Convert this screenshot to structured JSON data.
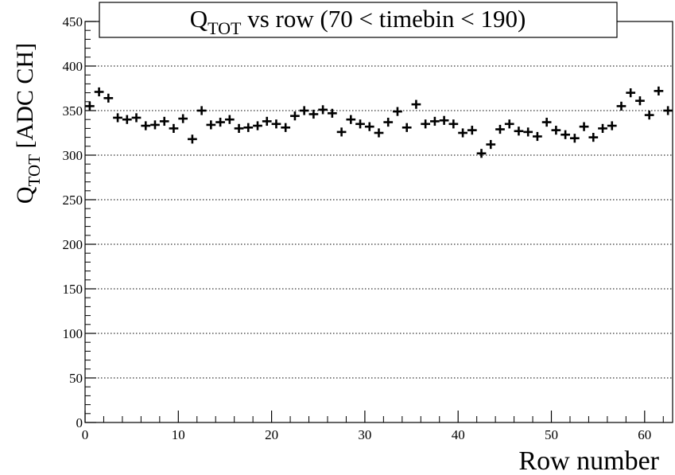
{
  "chart_data": {
    "type": "scatter",
    "title": {
      "main": "Q",
      "sub": "TOT",
      "rest": " vs row (70 < timebin < 190)"
    },
    "xlabel": "Row number",
    "ylabel": {
      "main": "Q",
      "sub": "TOT",
      "rest": " [ADC CH]"
    },
    "xlim": [
      0,
      63
    ],
    "ylim": [
      0,
      450
    ],
    "grid": "horizontal dotted",
    "x_ticks": [
      0,
      10,
      20,
      30,
      40,
      50,
      60
    ],
    "y_ticks": [
      0,
      50,
      100,
      150,
      200,
      250,
      300,
      350,
      400,
      450
    ],
    "x_tick_labels": [
      "0",
      "10",
      "20",
      "30",
      "40",
      "50",
      "60"
    ],
    "y_tick_labels": [
      "0",
      "50",
      "100",
      "150",
      "200",
      "250",
      "300",
      "350",
      "400",
      "450"
    ],
    "x": [
      0.5,
      1.5,
      2.5,
      3.5,
      4.5,
      5.5,
      6.5,
      7.5,
      8.5,
      9.5,
      10.5,
      11.5,
      12.5,
      13.5,
      14.5,
      15.5,
      16.5,
      17.5,
      18.5,
      19.5,
      20.5,
      21.5,
      22.5,
      23.5,
      24.5,
      25.5,
      26.5,
      27.5,
      28.5,
      29.5,
      30.5,
      31.5,
      32.5,
      33.5,
      34.5,
      35.5,
      36.5,
      37.5,
      38.5,
      39.5,
      40.5,
      41.5,
      42.5,
      43.5,
      44.5,
      45.5,
      46.5,
      47.5,
      48.5,
      49.5,
      50.5,
      51.5,
      52.5,
      53.5,
      54.5,
      55.5,
      56.5,
      57.5,
      58.5,
      59.5,
      60.5,
      61.5,
      62.5
    ],
    "y": [
      355,
      371,
      364,
      342,
      340,
      342,
      333,
      334,
      338,
      330,
      341,
      318,
      350,
      334,
      337,
      340,
      330,
      331,
      333,
      338,
      335,
      331,
      344,
      350,
      346,
      351,
      347,
      326,
      340,
      335,
      332,
      325,
      337,
      349,
      331,
      357,
      335,
      338,
      339,
      335,
      325,
      328,
      302,
      312,
      329,
      335,
      327,
      326,
      321,
      337,
      328,
      323,
      319,
      332,
      320,
      330,
      333,
      355,
      370,
      361,
      345,
      372,
      350
    ],
    "x_half_width": 0.5,
    "y_error": 5,
    "color": "#000000"
  }
}
